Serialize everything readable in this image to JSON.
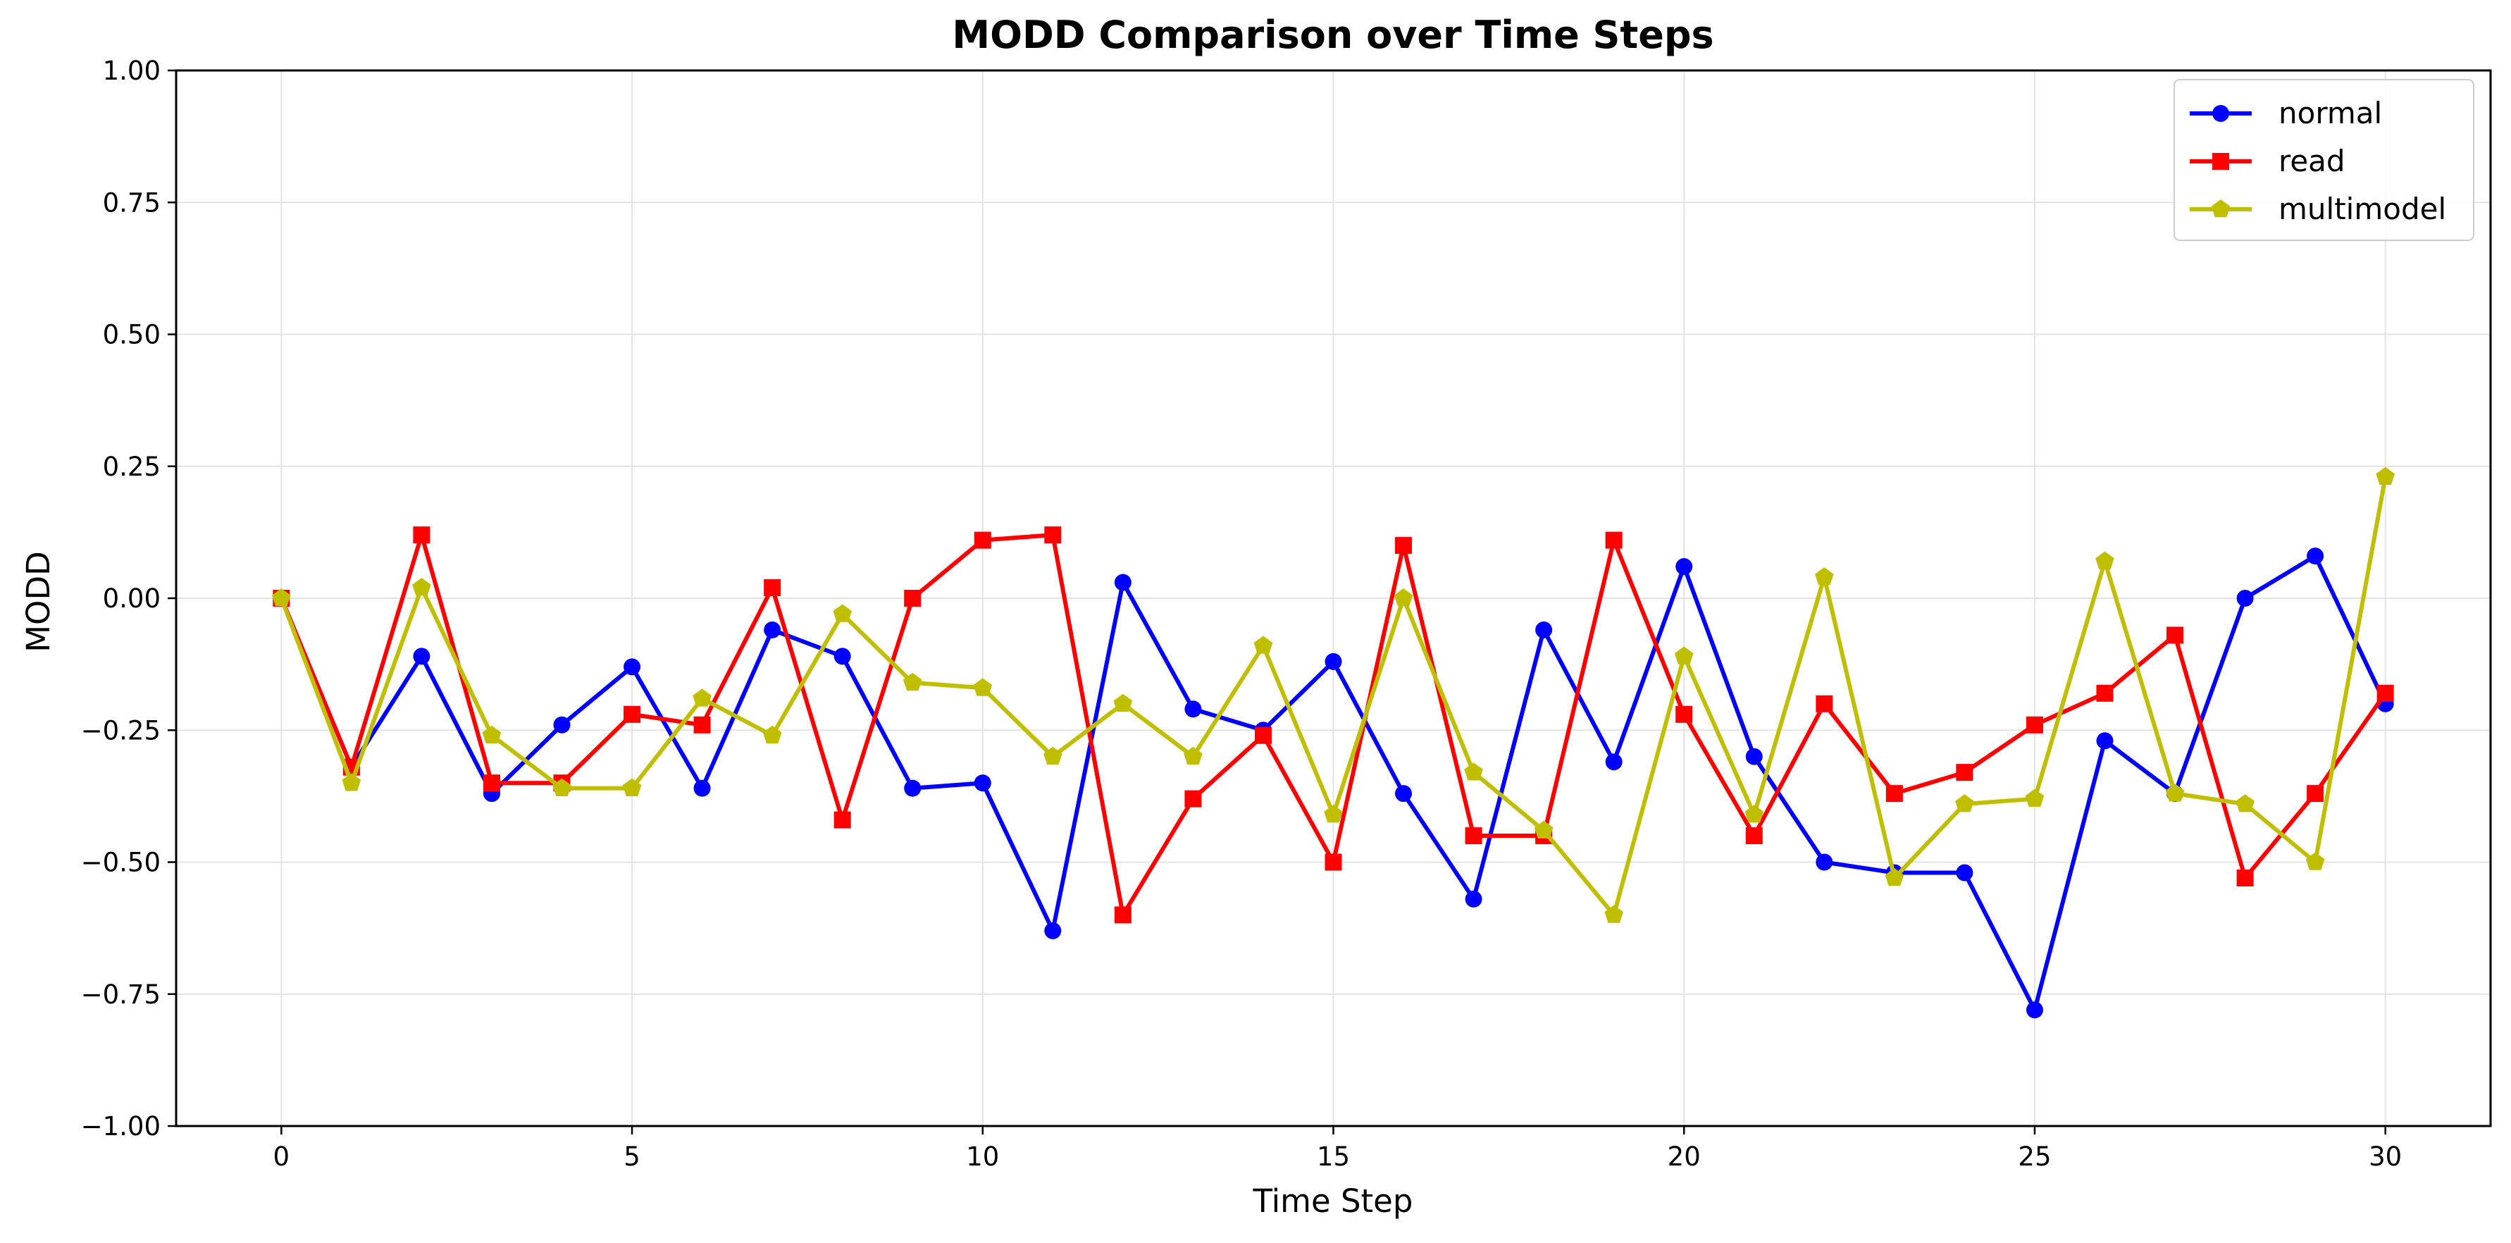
{
  "chart_data": {
    "type": "line",
    "title": "MODD Comparison over Time Steps",
    "xlabel": "Time Step",
    "ylabel": "MODD",
    "xlim": [
      -1.5,
      31.5
    ],
    "ylim": [
      -1.0,
      1.0
    ],
    "x_ticks": [
      0,
      5,
      10,
      15,
      20,
      25,
      30
    ],
    "y_ticks": [
      -1.0,
      -0.75,
      -0.5,
      -0.25,
      0.0,
      0.25,
      0.5,
      0.75,
      1.0
    ],
    "y_tick_labels": [
      "−1.00",
      "−0.75",
      "−0.50",
      "−0.25",
      "0.00",
      "0.25",
      "0.50",
      "0.75",
      "1.00"
    ],
    "x_tick_labels": [
      "0",
      "5",
      "10",
      "15",
      "20",
      "25",
      "30"
    ],
    "grid": true,
    "legend_position": "top-right",
    "x": [
      0,
      1,
      2,
      3,
      4,
      5,
      6,
      7,
      8,
      9,
      10,
      11,
      12,
      13,
      14,
      15,
      16,
      17,
      18,
      19,
      20,
      21,
      22,
      23,
      24,
      25,
      26,
      27,
      28,
      29,
      30
    ],
    "series": [
      {
        "name": "normal",
        "color": "#0000ff",
        "marker": "circle",
        "values": [
          0.0,
          -0.32,
          -0.11,
          -0.37,
          -0.24,
          -0.13,
          -0.36,
          -0.06,
          -0.11,
          -0.36,
          -0.35,
          -0.63,
          0.03,
          -0.21,
          -0.25,
          -0.12,
          -0.37,
          -0.57,
          -0.06,
          -0.31,
          0.06,
          -0.3,
          -0.5,
          -0.52,
          -0.52,
          -0.78,
          -0.27,
          -0.37,
          0.0,
          0.08,
          -0.2
        ]
      },
      {
        "name": "read",
        "color": "#ff0000",
        "marker": "square",
        "values": [
          0.0,
          -0.32,
          0.12,
          -0.35,
          -0.35,
          -0.22,
          -0.24,
          0.02,
          -0.42,
          0.0,
          0.11,
          0.12,
          -0.6,
          -0.38,
          -0.26,
          -0.5,
          0.1,
          -0.45,
          -0.45,
          0.11,
          -0.22,
          -0.45,
          -0.2,
          -0.37,
          -0.33,
          -0.24,
          -0.18,
          -0.07,
          -0.53,
          -0.37,
          -0.18
        ]
      },
      {
        "name": "multimodel",
        "color": "#bfbf00",
        "marker": "pentagon",
        "values": [
          0.0,
          -0.35,
          0.02,
          -0.26,
          -0.36,
          -0.36,
          -0.19,
          -0.26,
          -0.03,
          -0.16,
          -0.17,
          -0.3,
          -0.2,
          -0.3,
          -0.09,
          -0.41,
          0.0,
          -0.33,
          -0.44,
          -0.6,
          -0.11,
          -0.41,
          0.04,
          -0.53,
          -0.39,
          -0.38,
          0.07,
          -0.37,
          -0.39,
          -0.5,
          0.23
        ]
      }
    ]
  }
}
